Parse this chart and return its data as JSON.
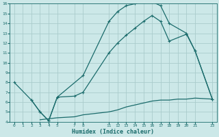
{
  "xlabel": "Humidex (Indice chaleur)",
  "bg_color": "#cce8e8",
  "grid_color": "#aacccc",
  "line_color": "#1a6b6b",
  "line1": {
    "x": [
      0,
      2,
      3,
      4,
      5,
      8,
      11,
      12,
      13,
      14,
      15,
      16,
      17,
      18,
      20,
      21,
      23
    ],
    "y": [
      8.0,
      6.2,
      5.0,
      4.1,
      6.5,
      8.7,
      14.2,
      15.2,
      15.8,
      16.0,
      16.2,
      16.2,
      15.8,
      14.0,
      13.0,
      11.2,
      6.3
    ]
  },
  "line2": {
    "x": [
      2,
      3,
      4,
      5,
      7,
      8,
      11,
      12,
      13,
      14,
      15,
      16,
      17,
      18,
      20,
      21,
      23
    ],
    "y": [
      6.2,
      5.0,
      4.1,
      6.5,
      6.6,
      7.0,
      11.0,
      12.0,
      12.8,
      13.5,
      14.2,
      14.8,
      14.2,
      12.2,
      12.9,
      11.2,
      6.3
    ]
  },
  "line3": {
    "x": [
      3,
      4,
      5,
      7,
      8,
      11,
      12,
      13,
      14,
      15,
      16,
      17,
      18,
      19,
      20,
      21,
      23
    ],
    "y": [
      4.2,
      4.3,
      4.4,
      4.5,
      4.7,
      5.0,
      5.2,
      5.5,
      5.7,
      5.9,
      6.1,
      6.2,
      6.2,
      6.3,
      6.3,
      6.4,
      6.3
    ]
  },
  "xlim": [
    -0.5,
    23.5
  ],
  "ylim": [
    4,
    16
  ],
  "xticks": [
    0,
    1,
    2,
    3,
    4,
    5,
    7,
    8,
    11,
    12,
    13,
    14,
    15,
    16,
    17,
    18,
    19,
    20,
    21,
    23
  ],
  "yticks": [
    4,
    5,
    6,
    7,
    8,
    9,
    10,
    11,
    12,
    13,
    14,
    15,
    16
  ]
}
